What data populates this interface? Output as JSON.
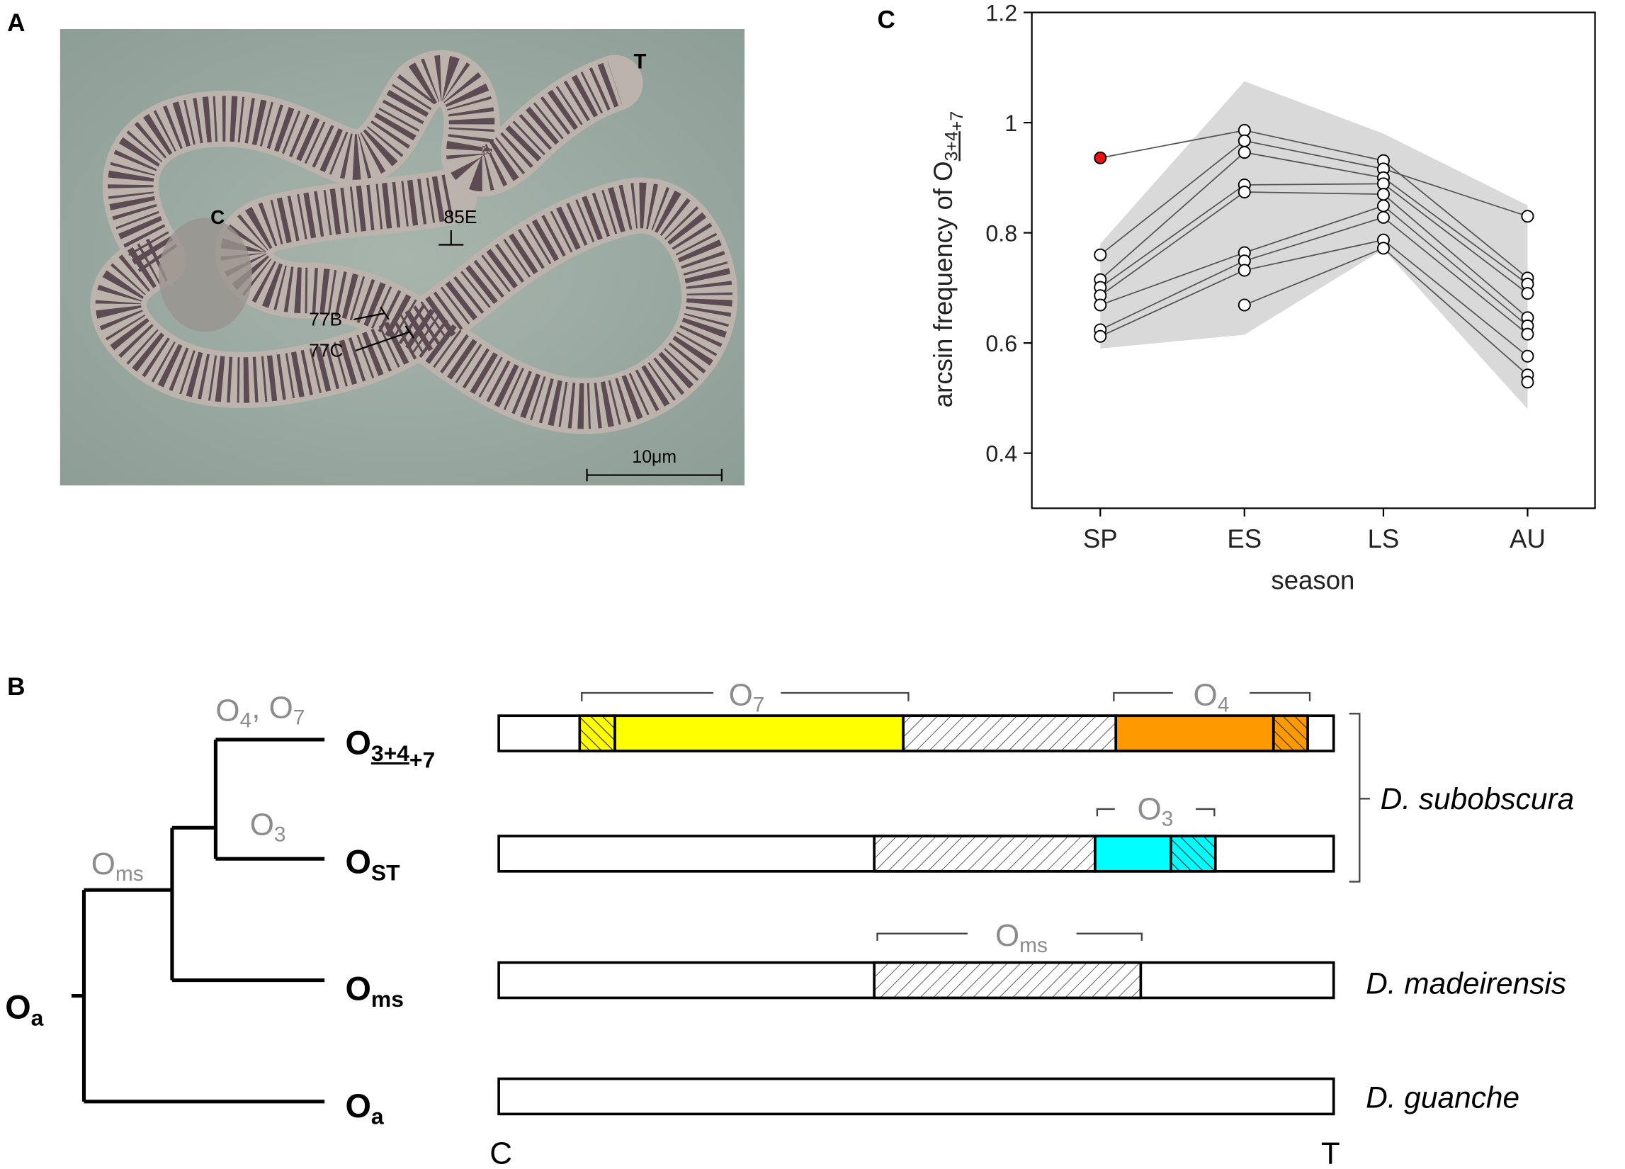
{
  "panels": {
    "a": "A",
    "b": "B",
    "c": "C"
  },
  "micrograph": {
    "labels": {
      "telomere": "T",
      "centromere": "C",
      "band_85e": "85E",
      "band_77b": "77B",
      "band_77c": "77C"
    },
    "scale_bar": "10μm"
  },
  "chart_data": {
    "type": "line",
    "ylabel": [
      {
        "text": "arcsin frequency of O"
      },
      {
        "sub": "3+4",
        "underline": true
      },
      {
        "sub": "+7"
      }
    ],
    "xlabel": "season",
    "categories": [
      "SP",
      "ES",
      "LS",
      "AU"
    ],
    "ylim": [
      0.3,
      1.2
    ],
    "yticks": [
      0.4,
      0.6,
      0.8,
      1,
      1.2
    ],
    "band": {
      "color": "#d9d9d9",
      "upper": [
        0.78,
        1.075,
        0.98,
        0.85
      ],
      "lower": [
        0.59,
        0.615,
        0.77,
        0.48
      ]
    },
    "line_color": "#555555",
    "marker_color": "#ffffff",
    "series": [
      {
        "values": [
          0.936,
          0.986,
          0.931,
          0.718
        ],
        "marker_colors": [
          "#ee1111",
          "#ffffff",
          "#ffffff",
          "#ffffff"
        ]
      },
      {
        "values": [
          0.76,
          0.967,
          0.916,
          0.83
        ]
      },
      {
        "values": [
          0.715,
          0.946,
          0.9,
          0.707
        ]
      },
      {
        "values": [
          0.701,
          0.887,
          0.889,
          0.69
        ]
      },
      {
        "values": [
          0.686,
          0.874,
          0.87,
          0.646
        ]
      },
      {
        "values": [
          0.669,
          0.764,
          0.849,
          0.631
        ]
      },
      {
        "values": [
          0.624,
          0.749,
          0.828,
          0.616
        ]
      },
      {
        "values": [
          0.612,
          0.732,
          0.787,
          0.576
        ]
      },
      {
        "values": [
          null,
          0.669,
          0.772,
          0.542
        ]
      },
      {
        "values": [
          null,
          null,
          null,
          0.529
        ]
      }
    ]
  },
  "diagram": {
    "root": [
      {
        "text": "O"
      },
      {
        "sub": "a"
      }
    ],
    "branch_labels": {
      "o4_o7": [
        {
          "text": "O"
        },
        {
          "sub": "4"
        },
        {
          "text": ", O"
        },
        {
          "sub": "7"
        }
      ],
      "o3": [
        {
          "text": "O"
        },
        {
          "sub": "3"
        }
      ],
      "oms": [
        {
          "text": "O"
        },
        {
          "sub": "ms"
        }
      ]
    },
    "leaves": [
      [
        {
          "text": "O"
        },
        {
          "sub": "3+4",
          "underline": true
        },
        {
          "sub": "+7"
        }
      ],
      [
        {
          "text": "O"
        },
        {
          "sub": "ST"
        }
      ],
      [
        {
          "text": "O"
        },
        {
          "sub": "ms"
        }
      ],
      [
        {
          "text": "O"
        },
        {
          "sub": "a"
        }
      ]
    ],
    "inversions": {
      "o7": [
        {
          "text": "O"
        },
        {
          "sub": "7"
        }
      ],
      "o4": [
        {
          "text": "O"
        },
        {
          "sub": "4"
        }
      ],
      "o3": [
        {
          "text": "O"
        },
        {
          "sub": "3"
        }
      ],
      "oms": [
        {
          "text": "O"
        },
        {
          "sub": "ms"
        }
      ]
    },
    "species": [
      "D. subobscura",
      "D. madeirensis",
      "D. guanche"
    ],
    "ends": [
      "C",
      "T"
    ]
  }
}
